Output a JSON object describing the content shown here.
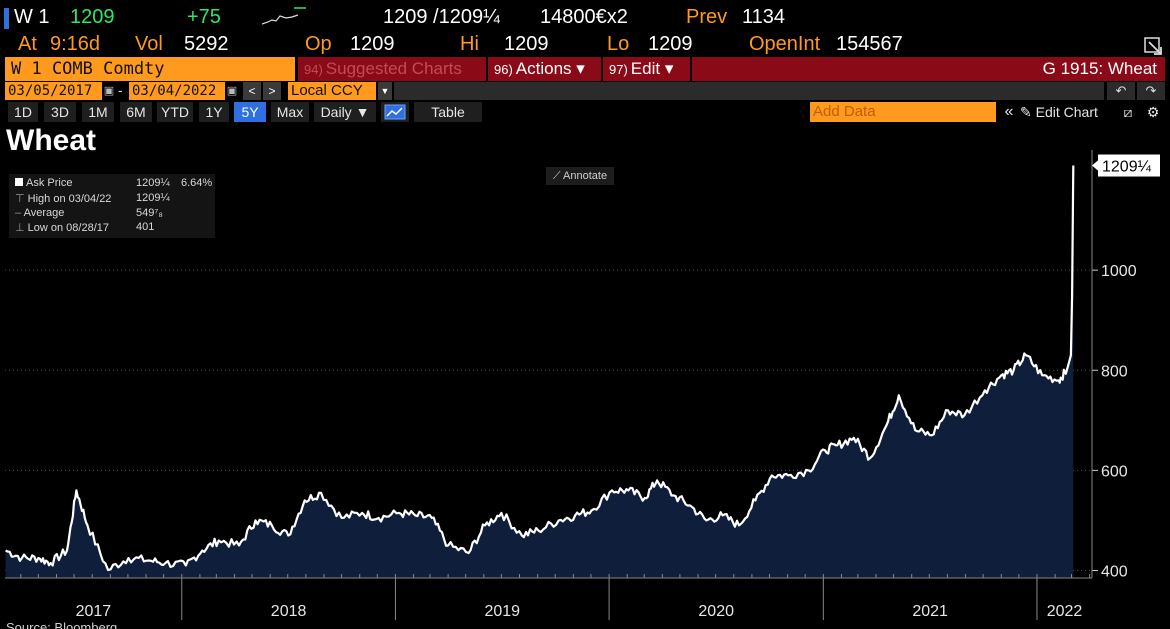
{
  "header": {
    "ticker": "W 1",
    "last": "1209",
    "change": "+75",
    "bid_ask": "1209 /1209¼",
    "size": "14800€x2",
    "prev_label": "Prev",
    "prev_value": "1134",
    "at_label": "At",
    "at_value": "9:16d",
    "vol_label": "Vol",
    "vol_value": "5292",
    "op_label": "Op",
    "op_value": "1209",
    "hi_label": "Hi",
    "hi_value": "1209",
    "lo_label": "Lo",
    "lo_value": "1209",
    "openint_label": "OpenInt",
    "openint_value": "154567"
  },
  "function_bar": {
    "security": "W 1 COMB Comdty",
    "suggested_num": "94)",
    "suggested": "Suggested Charts",
    "actions_num": "96)",
    "actions": "Actions ▾",
    "edit_num": "97)",
    "edit": "Edit ▾",
    "title": "G 1915: Wheat"
  },
  "date_bar": {
    "start_date": "03/05/2017",
    "end_date": "03/04/2022",
    "separator": "-",
    "prev": "<",
    "next": ">",
    "currency": "Local CCY"
  },
  "toolbar": {
    "ranges": [
      "1D",
      "3D",
      "1M",
      "6M",
      "YTD",
      "1Y",
      "5Y",
      "Max"
    ],
    "active_range": "5Y",
    "frequency": "Daily ▼",
    "table": "Table",
    "add_data_placeholder": "Add Data",
    "collapse": "«",
    "edit_chart": "Edit Chart"
  },
  "legend": {
    "rows": [
      {
        "label": "Ask Price",
        "value": "1209¼",
        "extra": "6.64%"
      },
      {
        "label": "High on 03/04/22",
        "value": "1209¼",
        "extra": ""
      },
      {
        "label": "Average",
        "value": "549⁷₈",
        "extra": ""
      },
      {
        "label": "Low on 08/28/17",
        "value": "401",
        "extra": ""
      }
    ]
  },
  "annotate": "Annotate",
  "source": "Source: Bloomberg",
  "colors": {
    "accent_orange": "#ff9a1f",
    "function_red": "#8a0a18",
    "price_green": "#2ee66b",
    "area_fill": "#0f1e3a",
    "line": "#ffffff"
  },
  "chart_data": {
    "type": "area",
    "title": "Wheat",
    "series": [
      {
        "name": "Ask Price",
        "x": [
          "2017-03-06",
          "2017-04-03",
          "2017-05-01",
          "2017-05-22",
          "2017-06-19",
          "2017-07-05",
          "2017-07-24",
          "2017-08-28",
          "2017-10-02",
          "2017-11-06",
          "2017-12-04",
          "2018-01-08",
          "2018-02-05",
          "2018-03-05",
          "2018-04-09",
          "2018-05-07",
          "2018-06-04",
          "2018-07-02",
          "2018-07-30",
          "2018-08-27",
          "2018-10-01",
          "2018-11-05",
          "2018-12-03",
          "2019-01-07",
          "2019-02-04",
          "2019-03-04",
          "2019-04-01",
          "2019-05-06",
          "2019-06-03",
          "2019-07-01",
          "2019-08-05",
          "2019-09-02",
          "2019-10-07",
          "2019-11-04",
          "2019-12-02",
          "2020-01-06",
          "2020-02-03",
          "2020-03-02",
          "2020-03-23",
          "2020-04-20",
          "2020-05-18",
          "2020-06-15",
          "2020-07-13",
          "2020-08-10",
          "2020-09-07",
          "2020-10-05",
          "2020-11-02",
          "2020-12-07",
          "2021-01-04",
          "2021-01-25",
          "2021-02-22",
          "2021-03-22",
          "2021-04-19",
          "2021-05-10",
          "2021-06-07",
          "2021-07-05",
          "2021-08-02",
          "2021-08-30",
          "2021-10-04",
          "2021-11-01",
          "2021-11-22",
          "2021-12-13",
          "2022-01-10",
          "2022-02-07",
          "2022-02-21",
          "2022-02-28",
          "2022-03-02",
          "2022-03-04"
        ],
        "values": [
          440,
          425,
          425,
          415,
          440,
          560,
          490,
          401,
          425,
          420,
          415,
          410,
          440,
          460,
          450,
          500,
          490,
          470,
          540,
          555,
          505,
          515,
          505,
          515,
          510,
          505,
          450,
          435,
          490,
          515,
          470,
          480,
          500,
          510,
          520,
          560,
          560,
          545,
          580,
          550,
          530,
          500,
          510,
          490,
          540,
          590,
          590,
          600,
          640,
          650,
          665,
          625,
          690,
          750,
          680,
          670,
          720,
          710,
          760,
          790,
          800,
          830,
          790,
          780,
          800,
          830,
          950,
          1209
        ]
      }
    ],
    "x_tick_labels": [
      "2017",
      "2018",
      "2019",
      "2020",
      "2021",
      "2022"
    ],
    "y_ticks": [
      400,
      600,
      800,
      1000
    ],
    "ylim": [
      385,
      1240
    ],
    "last_value_label": "1209¼",
    "grid": true,
    "legend_position": "top-left"
  }
}
